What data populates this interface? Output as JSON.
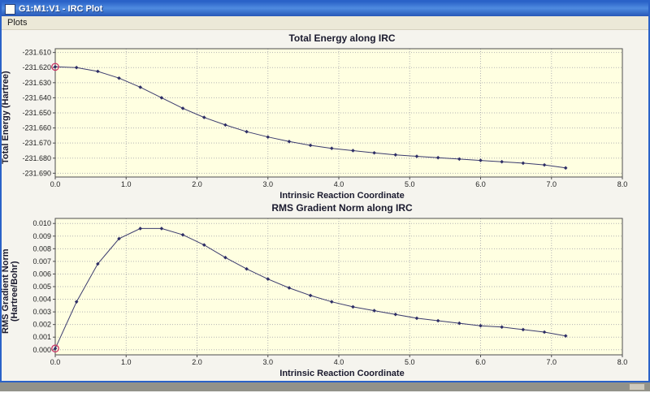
{
  "window": {
    "title": "G1:M1:V1 - IRC Plot"
  },
  "menu": {
    "items": [
      {
        "label": "Plots"
      }
    ]
  },
  "colors": {
    "plot_bg": "#ffffe1",
    "grid": "#b3b3b3",
    "axis": "#4d4d4d",
    "line": "#3a3a6e",
    "point": "#2e2e66",
    "highlight": "#cc3366",
    "tick_text": "#222222",
    "titlebar_blue": "#2a62c8"
  },
  "chart_data": [
    {
      "type": "line",
      "title": "Total Energy along IRC",
      "xlabel": "Intrinsic Reaction Coordinate",
      "ylabel": "Total Energy (Hartree)",
      "xlim": [
        0,
        8
      ],
      "ylim": [
        -231.6925,
        -231.6075
      ],
      "grid": true,
      "legend": "none",
      "xticks": [
        {
          "v": 0,
          "label": "0.0"
        },
        {
          "v": 1,
          "label": "1.0"
        },
        {
          "v": 2,
          "label": "2.0"
        },
        {
          "v": 3,
          "label": "3.0"
        },
        {
          "v": 4,
          "label": "4.0"
        },
        {
          "v": 5,
          "label": "5.0"
        },
        {
          "v": 6,
          "label": "6.0"
        },
        {
          "v": 7,
          "label": "7.0"
        },
        {
          "v": 8,
          "label": "8.0"
        }
      ],
      "yticks": [
        {
          "v": -231.61,
          "label": "-231.610"
        },
        {
          "v": -231.62,
          "label": "-231.620"
        },
        {
          "v": -231.63,
          "label": "-231.630"
        },
        {
          "v": -231.64,
          "label": "-231.640"
        },
        {
          "v": -231.65,
          "label": "-231.650"
        },
        {
          "v": -231.66,
          "label": "-231.660"
        },
        {
          "v": -231.67,
          "label": "-231.670"
        },
        {
          "v": -231.68,
          "label": "-231.680"
        },
        {
          "v": -231.69,
          "label": "-231.690"
        }
      ],
      "x": [
        0,
        0.3,
        0.6,
        0.9,
        1.2,
        1.5,
        1.8,
        2.1,
        2.4,
        2.7,
        3.0,
        3.3,
        3.6,
        3.9,
        4.2,
        4.5,
        4.8,
        5.1,
        5.4,
        5.7,
        6.0,
        6.3,
        6.6,
        6.9,
        7.2
      ],
      "y": [
        -231.6195,
        -231.62,
        -231.6225,
        -231.627,
        -231.633,
        -231.64,
        -231.647,
        -231.653,
        -231.658,
        -231.6625,
        -231.666,
        -231.669,
        -231.6715,
        -231.6735,
        -231.675,
        -231.6765,
        -231.6778,
        -231.6788,
        -231.6797,
        -231.6806,
        -231.6815,
        -231.6824,
        -231.6833,
        -231.6845,
        -231.6865
      ],
      "highlight_index": 0
    },
    {
      "type": "line",
      "title": "RMS Gradient Norm along IRC",
      "xlabel": "Intrinsic Reaction Coordinate",
      "ylabel": "RMS Gradient Norm",
      "ylabel2": "(Hartree/Bohr)",
      "xlim": [
        0,
        8
      ],
      "ylim": [
        -0.0004,
        0.0104
      ],
      "grid": true,
      "legend": "none",
      "xticks": [
        {
          "v": 0,
          "label": "0.0"
        },
        {
          "v": 1,
          "label": "1.0"
        },
        {
          "v": 2,
          "label": "2.0"
        },
        {
          "v": 3,
          "label": "3.0"
        },
        {
          "v": 4,
          "label": "4.0"
        },
        {
          "v": 5,
          "label": "5.0"
        },
        {
          "v": 6,
          "label": "6.0"
        },
        {
          "v": 7,
          "label": "7.0"
        },
        {
          "v": 8,
          "label": "8.0"
        }
      ],
      "yticks": [
        {
          "v": 0.0,
          "label": "0.000"
        },
        {
          "v": 0.001,
          "label": "0.001"
        },
        {
          "v": 0.002,
          "label": "0.002"
        },
        {
          "v": 0.003,
          "label": "0.003"
        },
        {
          "v": 0.004,
          "label": "0.004"
        },
        {
          "v": 0.005,
          "label": "0.005"
        },
        {
          "v": 0.006,
          "label": "0.006"
        },
        {
          "v": 0.007,
          "label": "0.007"
        },
        {
          "v": 0.008,
          "label": "0.008"
        },
        {
          "v": 0.009,
          "label": "0.009"
        },
        {
          "v": 0.01,
          "label": "0.010"
        }
      ],
      "x": [
        0,
        0.3,
        0.6,
        0.9,
        1.2,
        1.5,
        1.8,
        2.1,
        2.4,
        2.7,
        3.0,
        3.3,
        3.6,
        3.9,
        4.2,
        4.5,
        4.8,
        5.1,
        5.4,
        5.7,
        6.0,
        6.3,
        6.6,
        6.9,
        7.2
      ],
      "y": [
        0.0001,
        0.0038,
        0.0068,
        0.0088,
        0.0096,
        0.0096,
        0.0091,
        0.0083,
        0.0073,
        0.0064,
        0.0056,
        0.0049,
        0.0043,
        0.0038,
        0.0034,
        0.0031,
        0.0028,
        0.0025,
        0.0023,
        0.0021,
        0.0019,
        0.0018,
        0.0016,
        0.0014,
        0.0011
      ],
      "highlight_index": 0
    }
  ]
}
